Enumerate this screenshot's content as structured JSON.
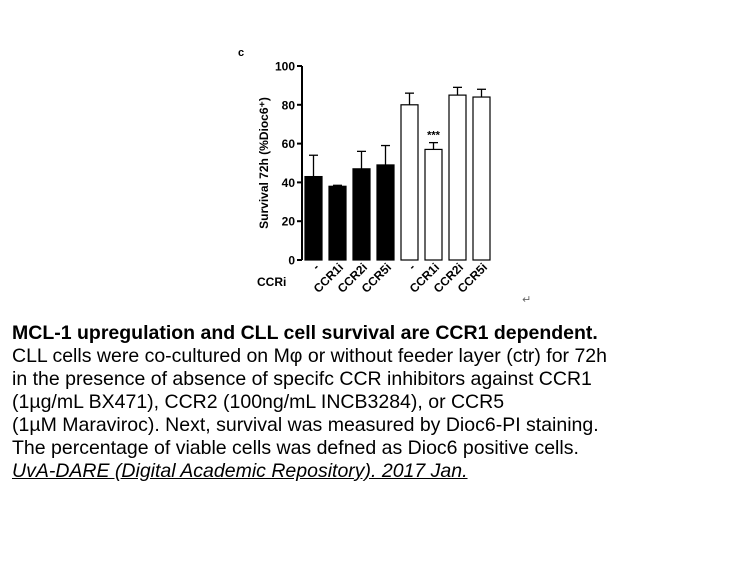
{
  "chart_data": {
    "type": "bar",
    "panel_label": "c",
    "ylabel": "Survival 72h (%Dioc6⁺)",
    "ylim": [
      0,
      100
    ],
    "yticks": [
      0,
      20,
      40,
      60,
      80,
      100
    ],
    "ytick_labels": [
      "0",
      "20",
      "40",
      "60",
      "80",
      "100"
    ],
    "x_group_label": "CCRi",
    "categories": [
      "-",
      "CCR1i",
      "CCR2i",
      "CCR5i",
      "-",
      "CCR1i",
      "CCR2i",
      "CCR5i"
    ],
    "values": [
      43,
      38,
      47,
      49,
      80,
      57,
      85,
      84
    ],
    "errors": [
      11,
      0.5,
      9,
      10,
      6,
      3.5,
      4,
      4
    ],
    "fill": [
      "black",
      "black",
      "black",
      "black",
      "white",
      "white",
      "white",
      "white"
    ],
    "annotations": [
      {
        "category_index": 5,
        "text": "***"
      }
    ]
  },
  "caption": {
    "title": "MCL-1 upregulation and CLL cell survival are CCR1 dependent.",
    "lines": [
      "CLL cells were co-cultured on Mφ or without feeder layer (ctr) for 72h",
      "in the presence of absence of specifc CCR inhibitors against CCR1",
      "(1µg/mL BX471), CCR2 (100ng/mL INCB3284), or CCR5",
      "(1µM Maraviroc). Next, survival was measured by Dioc6-PI staining.",
      "The percentage of viable cells was defned as Dioc6 positive cells."
    ],
    "source": "UvA-DARE (Digital Academic Repository). 2017 Jan."
  },
  "return_mark": "↵"
}
